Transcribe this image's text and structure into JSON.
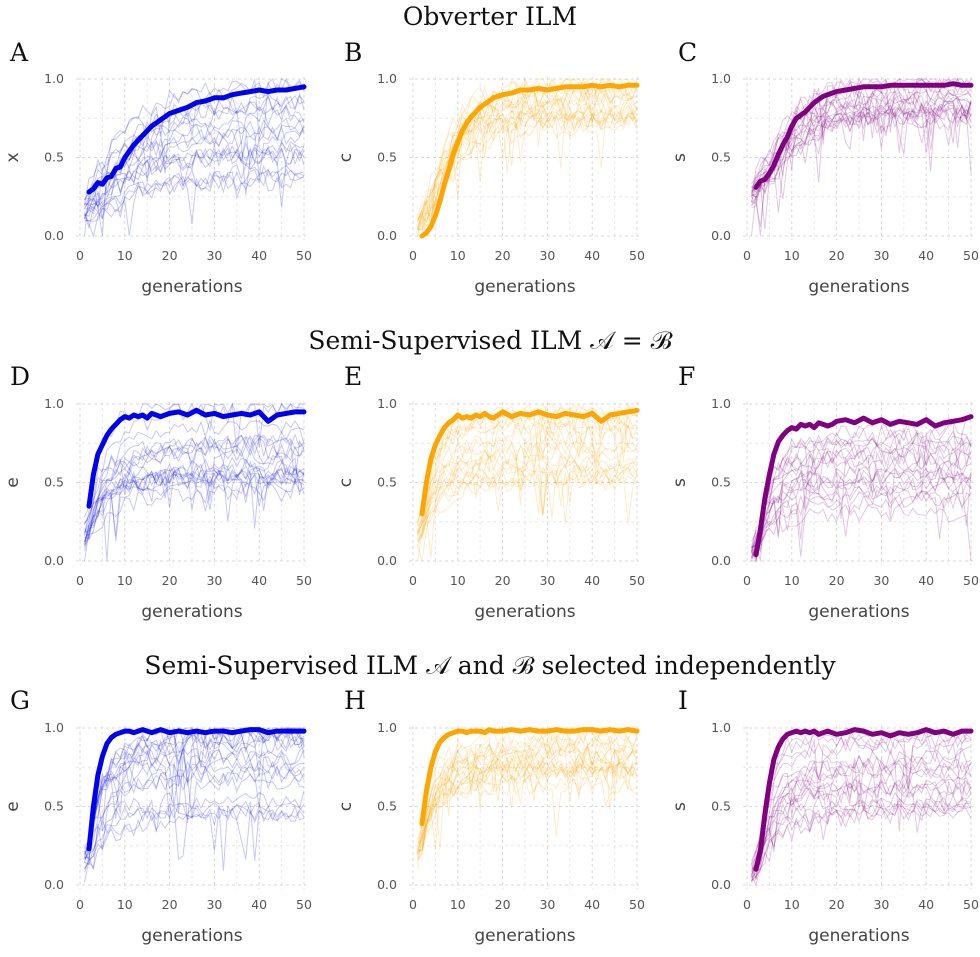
{
  "rows": [
    {
      "title": "Obverter ILM",
      "subtitle_math": ""
    },
    {
      "title": "Semi-Supervised ILM",
      "subtitle_math": "𝒜 = ℬ"
    },
    {
      "title": "Semi-Supervised ILM",
      "subtitle_math": "𝒜 and ℬ selected independently"
    }
  ],
  "colors": {
    "blue": "#0000ee",
    "orange": "#ffa500",
    "purple": "#800080"
  },
  "chart_data": [
    {
      "panel": "A",
      "type": "line",
      "color": "blue",
      "xlabel": "generations",
      "ylabel": "x",
      "xlim": [
        0,
        50
      ],
      "ylim": [
        0,
        1
      ],
      "xticks": [
        0,
        10,
        20,
        30,
        40,
        50
      ],
      "yticks": [
        0.0,
        0.5,
        1.0
      ],
      "grid": true,
      "mean": {
        "x": [
          2,
          3,
          4,
          5,
          6,
          7,
          8,
          9,
          10,
          11,
          12,
          13,
          14,
          15,
          16,
          17,
          18,
          19,
          20,
          22,
          24,
          26,
          28,
          30,
          32,
          34,
          36,
          38,
          40,
          42,
          44,
          46,
          48,
          50
        ],
        "y": [
          0.28,
          0.3,
          0.34,
          0.33,
          0.37,
          0.38,
          0.43,
          0.44,
          0.5,
          0.54,
          0.58,
          0.61,
          0.64,
          0.67,
          0.7,
          0.72,
          0.74,
          0.76,
          0.78,
          0.8,
          0.82,
          0.85,
          0.86,
          0.88,
          0.88,
          0.9,
          0.91,
          0.92,
          0.93,
          0.92,
          0.93,
          0.93,
          0.94,
          0.95
        ]
      },
      "runs": {
        "n": 20,
        "start": 0.05,
        "final_range": [
          0.35,
          1.0
        ]
      }
    },
    {
      "panel": "B",
      "type": "line",
      "color": "orange",
      "xlabel": "generations",
      "ylabel": "c",
      "xlim": [
        0,
        50
      ],
      "ylim": [
        0,
        1
      ],
      "xticks": [
        0,
        10,
        20,
        30,
        40,
        50
      ],
      "yticks": [
        0.0,
        0.5,
        1.0
      ],
      "grid": true,
      "mean": {
        "x": [
          2,
          3,
          4,
          5,
          6,
          7,
          8,
          9,
          10,
          11,
          12,
          13,
          14,
          15,
          16,
          17,
          18,
          19,
          20,
          22,
          24,
          26,
          28,
          30,
          32,
          34,
          36,
          38,
          40,
          42,
          44,
          46,
          48,
          50
        ],
        "y": [
          0.0,
          0.02,
          0.06,
          0.13,
          0.22,
          0.33,
          0.42,
          0.52,
          0.6,
          0.67,
          0.72,
          0.76,
          0.79,
          0.82,
          0.84,
          0.86,
          0.88,
          0.89,
          0.9,
          0.91,
          0.93,
          0.93,
          0.94,
          0.93,
          0.94,
          0.95,
          0.95,
          0.95,
          0.96,
          0.95,
          0.96,
          0.95,
          0.96,
          0.96
        ]
      },
      "runs": {
        "n": 20,
        "start": 0.0,
        "final_range": [
          0.7,
          1.0
        ]
      }
    },
    {
      "panel": "C",
      "type": "line",
      "color": "purple",
      "xlabel": "generations",
      "ylabel": "s",
      "xlim": [
        0,
        50
      ],
      "ylim": [
        0,
        1
      ],
      "xticks": [
        0,
        10,
        20,
        30,
        40,
        50
      ],
      "yticks": [
        0.0,
        0.5,
        1.0
      ],
      "grid": true,
      "mean": {
        "x": [
          2,
          3,
          4,
          5,
          6,
          7,
          8,
          9,
          10,
          11,
          12,
          13,
          14,
          15,
          16,
          17,
          18,
          19,
          20,
          22,
          24,
          26,
          28,
          30,
          32,
          34,
          36,
          38,
          40,
          42,
          44,
          46,
          48,
          50
        ],
        "y": [
          0.31,
          0.35,
          0.36,
          0.4,
          0.45,
          0.52,
          0.58,
          0.63,
          0.7,
          0.75,
          0.77,
          0.79,
          0.82,
          0.85,
          0.87,
          0.89,
          0.9,
          0.91,
          0.92,
          0.93,
          0.94,
          0.95,
          0.95,
          0.95,
          0.96,
          0.96,
          0.96,
          0.96,
          0.96,
          0.96,
          0.96,
          0.97,
          0.96,
          0.96
        ]
      },
      "runs": {
        "n": 20,
        "start": 0.15,
        "final_range": [
          0.7,
          1.0
        ]
      }
    },
    {
      "panel": "D",
      "type": "line",
      "color": "blue",
      "xlabel": "generations",
      "ylabel": "e",
      "xlim": [
        0,
        50
      ],
      "ylim": [
        0,
        1
      ],
      "xticks": [
        0,
        10,
        20,
        30,
        40,
        50
      ],
      "yticks": [
        0.0,
        0.5,
        1.0
      ],
      "grid": true,
      "mean": {
        "x": [
          2,
          3,
          4,
          5,
          6,
          7,
          8,
          9,
          10,
          11,
          12,
          13,
          14,
          15,
          16,
          17,
          18,
          19,
          20,
          22,
          24,
          26,
          28,
          30,
          32,
          34,
          36,
          38,
          40,
          42,
          44,
          46,
          48,
          50
        ],
        "y": [
          0.35,
          0.55,
          0.68,
          0.74,
          0.8,
          0.84,
          0.87,
          0.9,
          0.92,
          0.91,
          0.93,
          0.92,
          0.93,
          0.91,
          0.94,
          0.93,
          0.92,
          0.93,
          0.94,
          0.95,
          0.93,
          0.96,
          0.93,
          0.94,
          0.92,
          0.93,
          0.94,
          0.93,
          0.95,
          0.89,
          0.93,
          0.94,
          0.95,
          0.95
        ]
      },
      "runs": {
        "n": 20,
        "start": 0.0,
        "final_range": [
          0.45,
          1.0
        ]
      }
    },
    {
      "panel": "E",
      "type": "line",
      "color": "orange",
      "xlabel": "generations",
      "ylabel": "c",
      "xlim": [
        0,
        50
      ],
      "ylim": [
        0,
        1
      ],
      "xticks": [
        0,
        10,
        20,
        30,
        40,
        50
      ],
      "yticks": [
        0.0,
        0.5,
        1.0
      ],
      "grid": true,
      "mean": {
        "x": [
          2,
          3,
          4,
          5,
          6,
          7,
          8,
          9,
          10,
          11,
          12,
          13,
          14,
          15,
          16,
          17,
          18,
          19,
          20,
          22,
          24,
          26,
          28,
          30,
          32,
          34,
          36,
          38,
          40,
          42,
          44,
          46,
          48,
          50
        ],
        "y": [
          0.3,
          0.5,
          0.65,
          0.74,
          0.8,
          0.85,
          0.88,
          0.9,
          0.93,
          0.91,
          0.92,
          0.91,
          0.93,
          0.92,
          0.94,
          0.92,
          0.91,
          0.93,
          0.95,
          0.92,
          0.94,
          0.93,
          0.95,
          0.93,
          0.92,
          0.94,
          0.93,
          0.92,
          0.94,
          0.89,
          0.93,
          0.94,
          0.95,
          0.96
        ]
      },
      "runs": {
        "n": 20,
        "start": 0.0,
        "final_range": [
          0.5,
          1.0
        ]
      }
    },
    {
      "panel": "F",
      "type": "line",
      "color": "purple",
      "xlabel": "generations",
      "ylabel": "s",
      "xlim": [
        0,
        50
      ],
      "ylim": [
        0,
        1
      ],
      "xticks": [
        0,
        10,
        20,
        30,
        40,
        50
      ],
      "yticks": [
        0.0,
        0.5,
        1.0
      ],
      "grid": true,
      "mean": {
        "x": [
          2,
          3,
          4,
          5,
          6,
          7,
          8,
          9,
          10,
          11,
          12,
          13,
          14,
          15,
          16,
          17,
          18,
          19,
          20,
          22,
          24,
          26,
          28,
          30,
          32,
          34,
          36,
          38,
          40,
          42,
          44,
          46,
          48,
          50
        ],
        "y": [
          0.04,
          0.2,
          0.4,
          0.55,
          0.68,
          0.76,
          0.8,
          0.83,
          0.85,
          0.84,
          0.87,
          0.86,
          0.87,
          0.85,
          0.88,
          0.87,
          0.86,
          0.87,
          0.89,
          0.9,
          0.88,
          0.91,
          0.88,
          0.9,
          0.87,
          0.89,
          0.88,
          0.87,
          0.9,
          0.86,
          0.88,
          0.89,
          0.9,
          0.92
        ]
      },
      "runs": {
        "n": 20,
        "start": 0.0,
        "final_range": [
          0.3,
          1.0
        ]
      }
    },
    {
      "panel": "G",
      "type": "line",
      "color": "blue",
      "xlabel": "generations",
      "ylabel": "e",
      "xlim": [
        0,
        50
      ],
      "ylim": [
        0,
        1
      ],
      "xticks": [
        0,
        10,
        20,
        30,
        40,
        50
      ],
      "yticks": [
        0.0,
        0.5,
        1.0
      ],
      "grid": true,
      "mean": {
        "x": [
          2,
          3,
          4,
          5,
          6,
          7,
          8,
          9,
          10,
          11,
          12,
          13,
          14,
          15,
          16,
          17,
          18,
          19,
          20,
          22,
          24,
          26,
          28,
          30,
          32,
          34,
          36,
          38,
          40,
          42,
          44,
          46,
          48,
          50
        ],
        "y": [
          0.23,
          0.5,
          0.7,
          0.82,
          0.9,
          0.94,
          0.96,
          0.97,
          0.98,
          0.98,
          0.97,
          0.98,
          0.99,
          0.98,
          0.97,
          0.98,
          0.99,
          0.98,
          0.97,
          0.98,
          0.97,
          0.98,
          0.97,
          0.98,
          0.98,
          0.97,
          0.98,
          0.99,
          0.99,
          0.97,
          0.98,
          0.98,
          0.98,
          0.98
        ]
      },
      "runs": {
        "n": 20,
        "start": 0.0,
        "final_range": [
          0.45,
          1.0
        ]
      }
    },
    {
      "panel": "H",
      "type": "line",
      "color": "orange",
      "xlabel": "generations",
      "ylabel": "c",
      "xlim": [
        0,
        50
      ],
      "ylim": [
        0,
        1
      ],
      "xticks": [
        0,
        10,
        20,
        30,
        40,
        50
      ],
      "yticks": [
        0.0,
        0.5,
        1.0
      ],
      "grid": true,
      "mean": {
        "x": [
          2,
          3,
          4,
          5,
          6,
          7,
          8,
          9,
          10,
          11,
          12,
          13,
          14,
          15,
          16,
          17,
          18,
          19,
          20,
          22,
          24,
          26,
          28,
          30,
          32,
          34,
          36,
          38,
          40,
          42,
          44,
          46,
          48,
          50
        ],
        "y": [
          0.39,
          0.6,
          0.75,
          0.85,
          0.91,
          0.94,
          0.96,
          0.97,
          0.98,
          0.98,
          0.97,
          0.98,
          0.98,
          0.98,
          0.97,
          0.99,
          0.98,
          0.98,
          0.98,
          0.99,
          0.98,
          0.99,
          0.98,
          0.98,
          0.99,
          0.98,
          0.98,
          0.99,
          0.99,
          0.98,
          0.99,
          0.98,
          0.99,
          0.98
        ]
      },
      "runs": {
        "n": 20,
        "start": 0.0,
        "final_range": [
          0.55,
          1.0
        ]
      }
    },
    {
      "panel": "I",
      "type": "line",
      "color": "purple",
      "xlabel": "generations",
      "ylabel": "s",
      "xlim": [
        0,
        50
      ],
      "ylim": [
        0,
        1
      ],
      "xticks": [
        0,
        10,
        20,
        30,
        40,
        50
      ],
      "yticks": [
        0.0,
        0.5,
        1.0
      ],
      "grid": true,
      "mean": {
        "x": [
          2,
          3,
          4,
          5,
          6,
          7,
          8,
          9,
          10,
          11,
          12,
          13,
          14,
          15,
          16,
          17,
          18,
          19,
          20,
          22,
          24,
          26,
          28,
          30,
          32,
          34,
          36,
          38,
          40,
          42,
          44,
          46,
          48,
          50
        ],
        "y": [
          0.1,
          0.22,
          0.45,
          0.65,
          0.8,
          0.88,
          0.93,
          0.96,
          0.97,
          0.98,
          0.97,
          0.98,
          0.97,
          0.98,
          0.96,
          0.97,
          0.98,
          0.97,
          0.96,
          0.97,
          0.99,
          0.98,
          0.96,
          0.97,
          0.95,
          0.97,
          0.96,
          0.97,
          0.99,
          0.97,
          0.98,
          0.96,
          0.98,
          0.98
        ]
      },
      "runs": {
        "n": 20,
        "start": 0.0,
        "final_range": [
          0.4,
          1.0
        ]
      }
    }
  ]
}
